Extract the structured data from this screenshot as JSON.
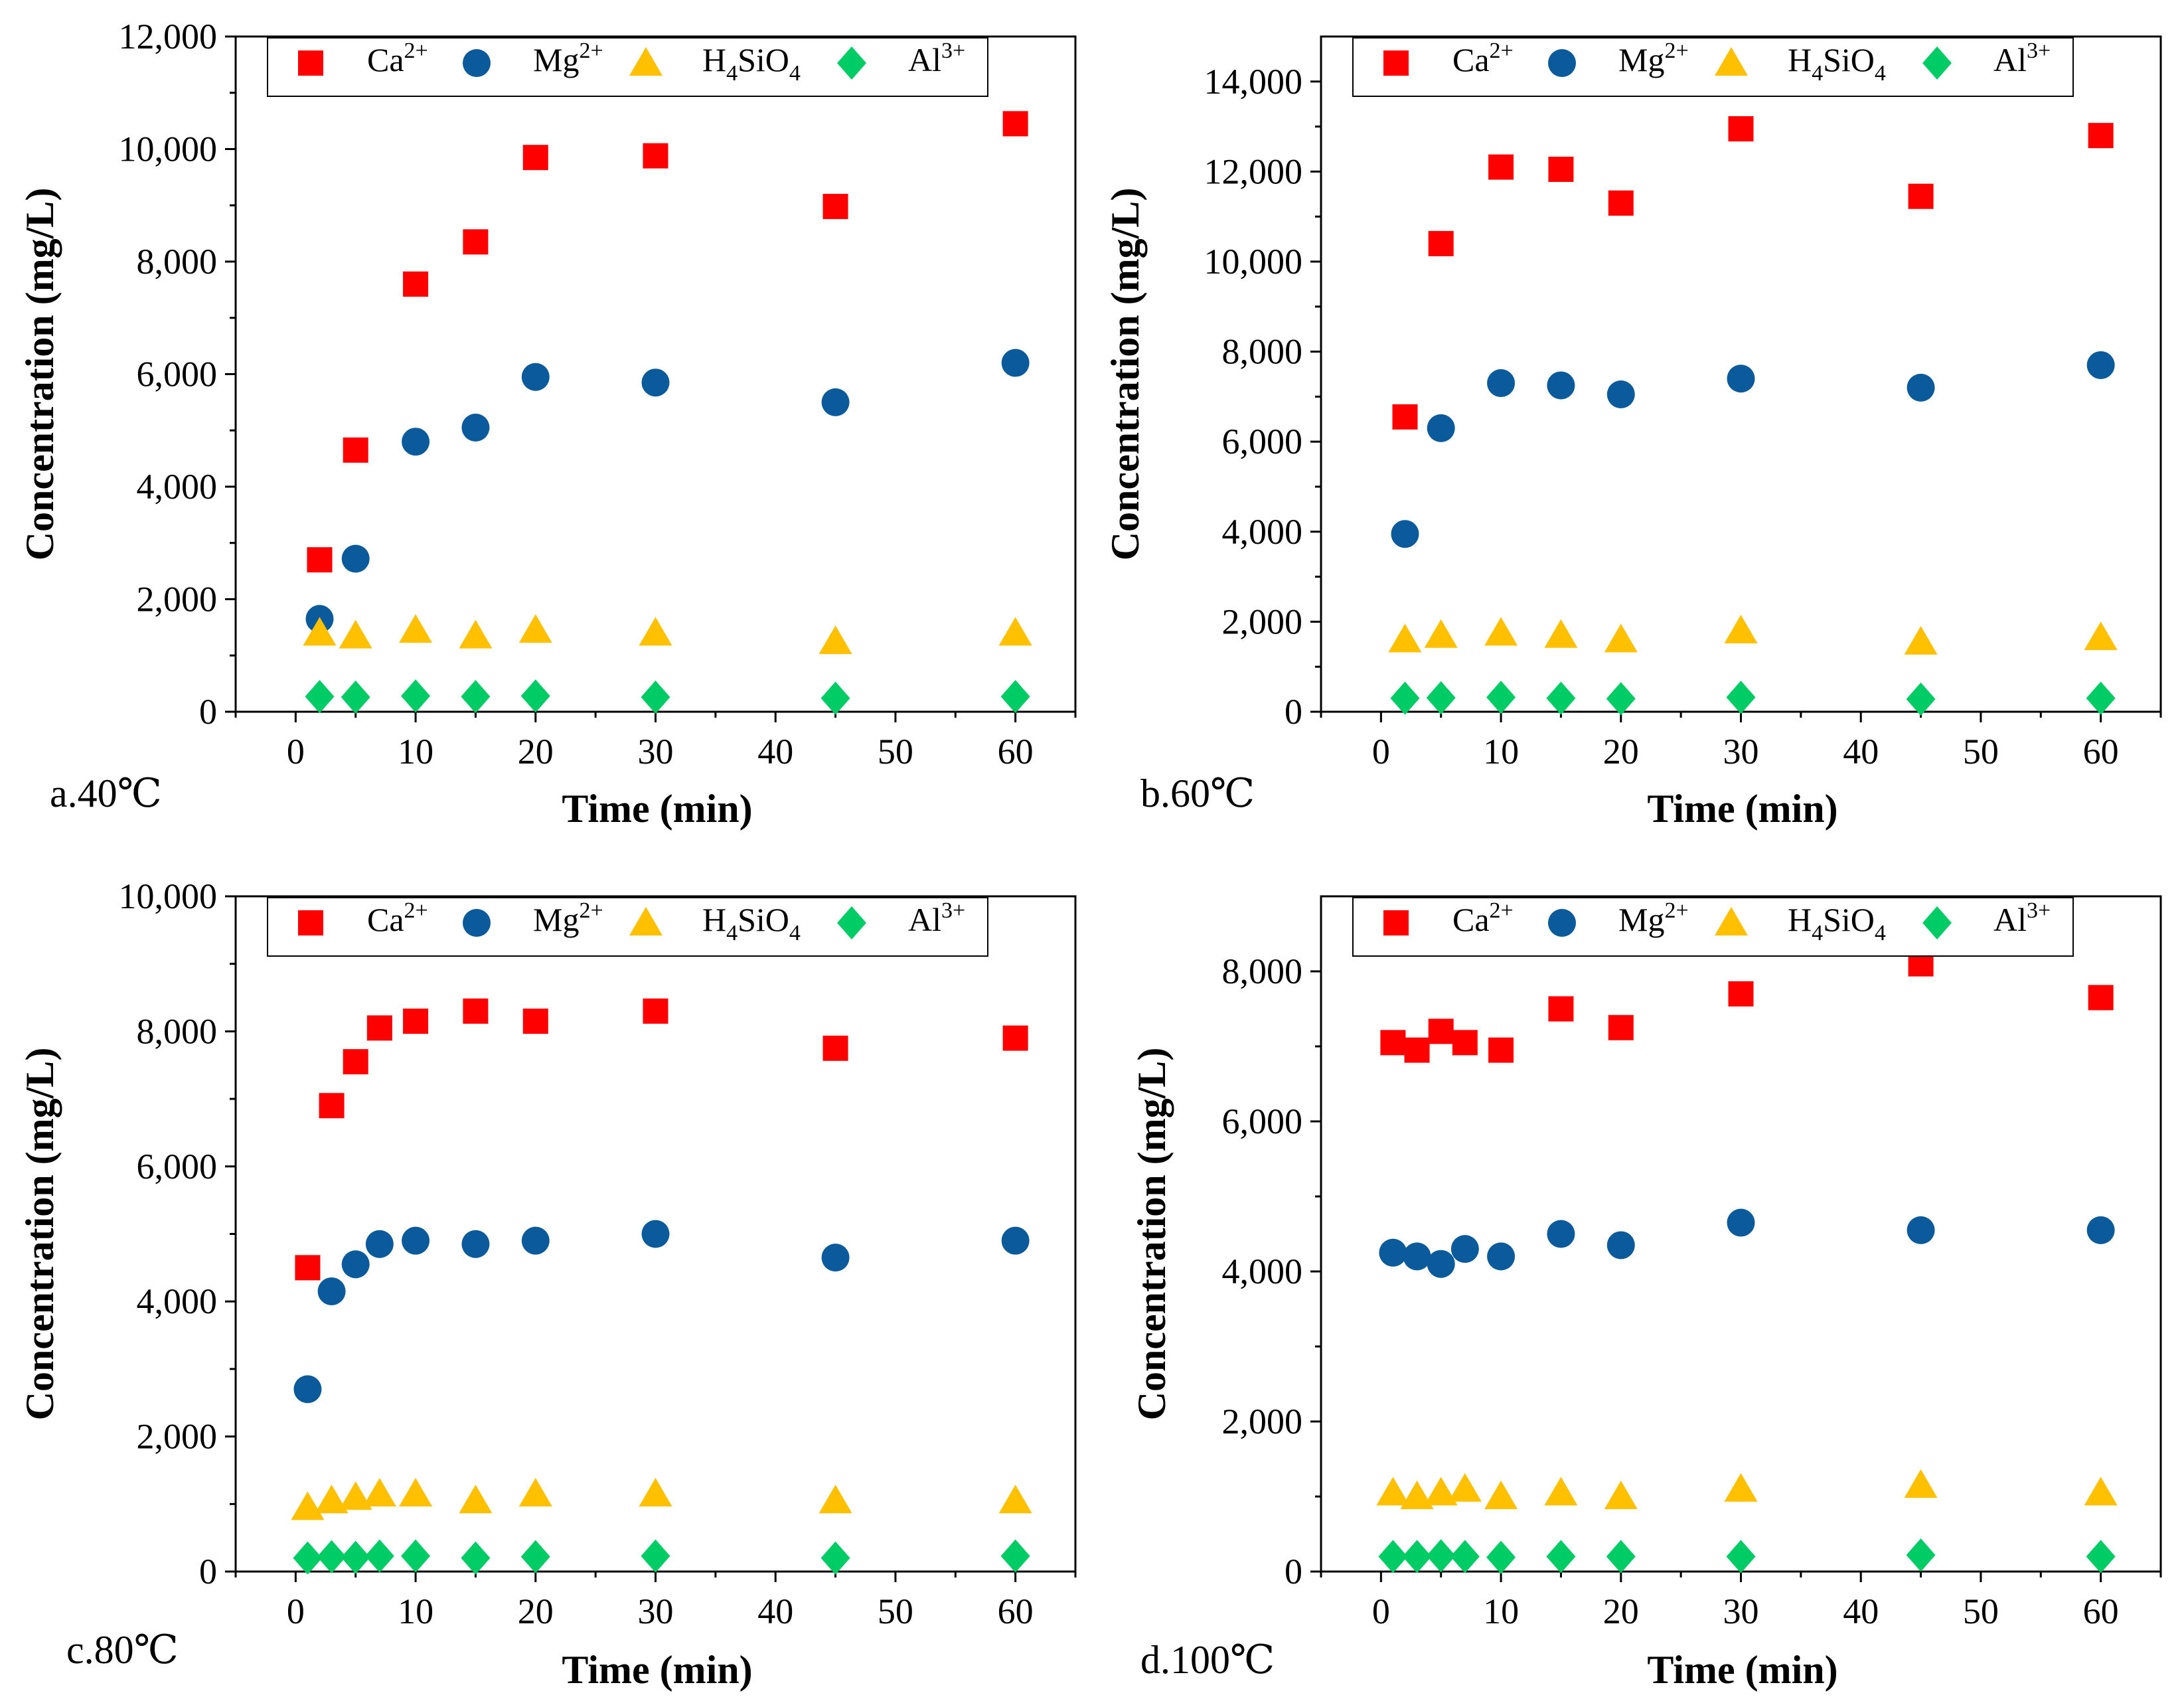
{
  "colors": {
    "ca": "#ff0000",
    "mg": "#0b5a9c",
    "si": "#ffc000",
    "al": "#00cc66"
  },
  "legend_labels": {
    "ca": [
      "Ca",
      "2+"
    ],
    "mg": [
      "Mg",
      "2+"
    ],
    "si": [
      "H",
      "4",
      "SiO",
      "4"
    ],
    "al": [
      "Al",
      "3+"
    ]
  },
  "chart_data": [
    {
      "type": "scatter",
      "panel_label": "a.40℃",
      "xlabel": "Time (min)",
      "ylabel": "Concentration (mg/L)",
      "xlim": [
        -5,
        65
      ],
      "ylim": [
        0,
        12000
      ],
      "xticks": [
        0,
        10,
        20,
        30,
        40,
        50,
        60
      ],
      "yticks": [
        0,
        2000,
        4000,
        6000,
        8000,
        10000,
        12000
      ],
      "ytick_labels": [
        "0",
        "2,000",
        "4,000",
        "6,000",
        "8,000",
        "10,000",
        "12,000"
      ],
      "series": [
        {
          "key": "ca",
          "name": "Ca2+",
          "marker": "square",
          "x": [
            2,
            5,
            10,
            15,
            20,
            30,
            45,
            60
          ],
          "y": [
            2700,
            4650,
            7600,
            8350,
            9850,
            9880,
            8980,
            10450
          ]
        },
        {
          "key": "mg",
          "name": "Mg2+",
          "marker": "circle",
          "x": [
            2,
            5,
            10,
            15,
            20,
            30,
            45,
            60
          ],
          "y": [
            1650,
            2720,
            4800,
            5050,
            5950,
            5850,
            5500,
            6200
          ]
        },
        {
          "key": "si",
          "name": "H4SiO4",
          "marker": "triangle",
          "x": [
            2,
            5,
            10,
            15,
            20,
            30,
            45,
            60
          ],
          "y": [
            1400,
            1350,
            1450,
            1350,
            1450,
            1400,
            1250,
            1400
          ]
        },
        {
          "key": "al",
          "name": "Al3+",
          "marker": "diamond",
          "x": [
            2,
            5,
            10,
            15,
            20,
            30,
            45,
            60
          ],
          "y": [
            270,
            260,
            280,
            270,
            280,
            260,
            240,
            270
          ]
        }
      ]
    },
    {
      "type": "scatter",
      "panel_label": "b.60℃",
      "xlabel": "Time (min)",
      "ylabel": "Concentration (mg/L)",
      "xlim": [
        -5,
        65
      ],
      "ylim": [
        0,
        15000
      ],
      "xticks": [
        0,
        10,
        20,
        30,
        40,
        50,
        60
      ],
      "yticks": [
        0,
        2000,
        4000,
        6000,
        8000,
        10000,
        12000,
        14000
      ],
      "ytick_labels": [
        "0",
        "2,000",
        "4,000",
        "6,000",
        "8,000",
        "10,000",
        "12,000",
        "14,000"
      ],
      "series": [
        {
          "key": "ca",
          "name": "Ca2+",
          "marker": "square",
          "x": [
            2,
            5,
            10,
            15,
            20,
            30,
            45,
            60
          ],
          "y": [
            6550,
            10400,
            12100,
            12050,
            11300,
            12950,
            11450,
            12800
          ]
        },
        {
          "key": "mg",
          "name": "Mg2+",
          "marker": "circle",
          "x": [
            2,
            5,
            10,
            15,
            20,
            30,
            45,
            60
          ],
          "y": [
            3950,
            6300,
            7300,
            7250,
            7050,
            7400,
            7200,
            7700
          ]
        },
        {
          "key": "si",
          "name": "H4SiO4",
          "marker": "triangle",
          "x": [
            2,
            5,
            10,
            15,
            20,
            30,
            45,
            60
          ],
          "y": [
            1600,
            1700,
            1750,
            1700,
            1600,
            1800,
            1550,
            1650
          ]
        },
        {
          "key": "al",
          "name": "Al3+",
          "marker": "diamond",
          "x": [
            2,
            5,
            10,
            15,
            20,
            30,
            45,
            60
          ],
          "y": [
            300,
            310,
            320,
            300,
            290,
            320,
            280,
            300
          ]
        }
      ]
    },
    {
      "type": "scatter",
      "panel_label": "c.80℃",
      "xlabel": "Time (min)",
      "ylabel": "Concentration (mg/L)",
      "xlim": [
        -5,
        65
      ],
      "ylim": [
        0,
        10000
      ],
      "xticks": [
        0,
        10,
        20,
        30,
        40,
        50,
        60
      ],
      "yticks": [
        0,
        2000,
        4000,
        6000,
        8000,
        10000
      ],
      "ytick_labels": [
        "0",
        "2,000",
        "4,000",
        "6,000",
        "8,000",
        "10,000"
      ],
      "series": [
        {
          "key": "ca",
          "name": "Ca2+",
          "marker": "square",
          "x": [
            1,
            3,
            5,
            7,
            10,
            15,
            20,
            30,
            45,
            60
          ],
          "y": [
            4500,
            6900,
            7550,
            8050,
            8150,
            8300,
            8150,
            8300,
            7750,
            7900
          ]
        },
        {
          "key": "mg",
          "name": "Mg2+",
          "marker": "circle",
          "x": [
            1,
            3,
            5,
            7,
            10,
            15,
            20,
            30,
            45,
            60
          ],
          "y": [
            2700,
            4150,
            4550,
            4850,
            4900,
            4850,
            4900,
            5000,
            4650,
            4900
          ]
        },
        {
          "key": "si",
          "name": "H4SiO4",
          "marker": "triangle",
          "x": [
            1,
            3,
            5,
            7,
            10,
            15,
            20,
            30,
            45,
            60
          ],
          "y": [
            950,
            1050,
            1100,
            1150,
            1150,
            1050,
            1150,
            1150,
            1050,
            1050
          ]
        },
        {
          "key": "al",
          "name": "Al3+",
          "marker": "diamond",
          "x": [
            1,
            3,
            5,
            7,
            10,
            15,
            20,
            30,
            45,
            60
          ],
          "y": [
            200,
            220,
            210,
            230,
            230,
            200,
            220,
            230,
            200,
            230
          ]
        }
      ]
    },
    {
      "type": "scatter",
      "panel_label": "d.100℃",
      "xlabel": "Time (min)",
      "ylabel": "Concentration (mg/L)",
      "xlim": [
        -5,
        65
      ],
      "ylim": [
        0,
        9000
      ],
      "xticks": [
        0,
        10,
        20,
        30,
        40,
        50,
        60
      ],
      "yticks": [
        0,
        2000,
        4000,
        6000,
        8000
      ],
      "ytick_labels": [
        "0",
        "2,000",
        "4,000",
        "6,000",
        "8,000"
      ],
      "series": [
        {
          "key": "ca",
          "name": "Ca2+",
          "marker": "square",
          "x": [
            1,
            3,
            5,
            7,
            10,
            15,
            20,
            30,
            45,
            60
          ],
          "y": [
            7050,
            6950,
            7200,
            7050,
            6950,
            7500,
            7250,
            7700,
            8100,
            7650
          ]
        },
        {
          "key": "mg",
          "name": "Mg2+",
          "marker": "circle",
          "x": [
            1,
            3,
            5,
            7,
            10,
            15,
            20,
            30,
            45,
            60
          ],
          "y": [
            4250,
            4200,
            4100,
            4300,
            4200,
            4500,
            4350,
            4650,
            4550,
            4550
          ]
        },
        {
          "key": "si",
          "name": "H4SiO4",
          "marker": "triangle",
          "x": [
            1,
            3,
            5,
            7,
            10,
            15,
            20,
            30,
            45,
            60
          ],
          "y": [
            1050,
            1000,
            1050,
            1100,
            1000,
            1050,
            1000,
            1100,
            1150,
            1050
          ]
        },
        {
          "key": "al",
          "name": "Al3+",
          "marker": "diamond",
          "x": [
            1,
            3,
            5,
            7,
            10,
            15,
            20,
            30,
            45,
            60
          ],
          "y": [
            200,
            200,
            210,
            200,
            190,
            200,
            200,
            200,
            220,
            200
          ]
        }
      ]
    }
  ]
}
